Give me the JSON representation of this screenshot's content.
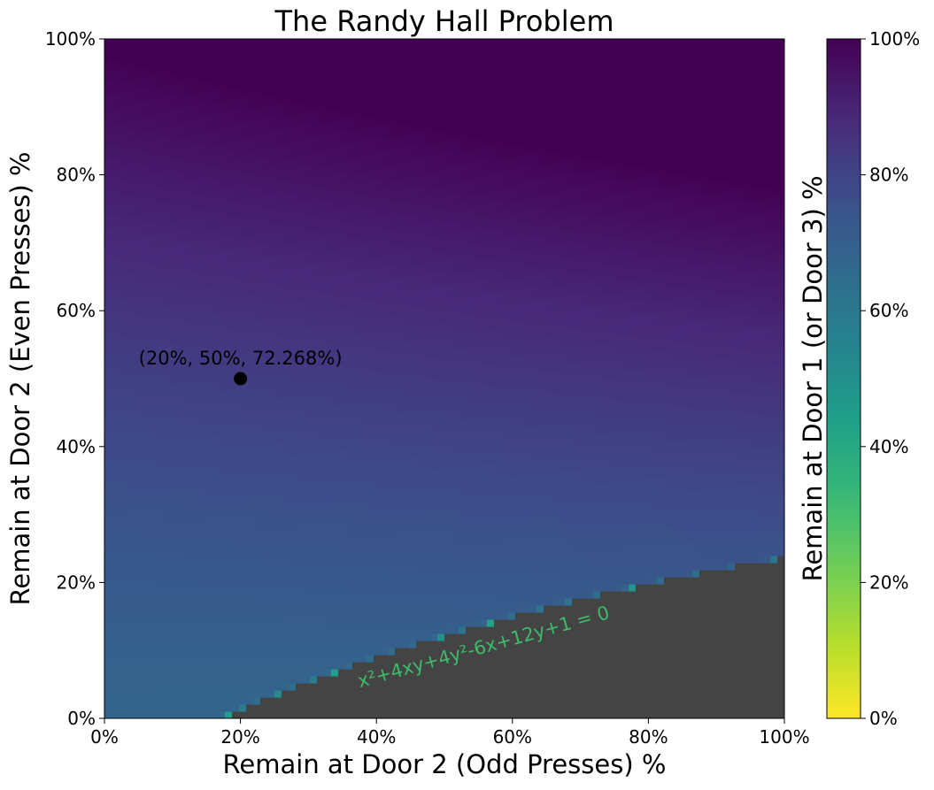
{
  "chart_data": {
    "type": "heatmap",
    "title": "The Randy Hall Problem",
    "xlabel": "Remain at Door 2 (Odd Presses) %",
    "ylabel": "Remain at Door 2 (Even Presses) %",
    "colorbar_label": "Remain at Door 1 (or Door 3) %",
    "colormap": "viridis_r",
    "xlim": [
      0,
      100
    ],
    "ylim": [
      0,
      100
    ],
    "clim": [
      0,
      100
    ],
    "x_ticks": [
      0,
      20,
      40,
      60,
      80,
      100
    ],
    "x_tick_labels": [
      "0%",
      "20%",
      "40%",
      "60%",
      "80%",
      "100%"
    ],
    "y_ticks": [
      0,
      20,
      40,
      60,
      80,
      100
    ],
    "y_tick_labels": [
      "0%",
      "20%",
      "40%",
      "60%",
      "80%",
      "100%"
    ],
    "colorbar_ticks": [
      0,
      20,
      40,
      60,
      80,
      100
    ],
    "colorbar_tick_labels": [
      "0%",
      "20%",
      "40%",
      "60%",
      "80%",
      "100%"
    ],
    "invalid_region_color": "#444444",
    "boundary_curve": {
      "label": "x²+4xy+4y²-6x+12y+1 = 0",
      "label_color": "#3dbb6a"
    },
    "marked_point": {
      "x": 20,
      "y": 50,
      "z": 72.268,
      "label": "(20%, 50%, 72.268%)",
      "color": "#000000"
    }
  }
}
